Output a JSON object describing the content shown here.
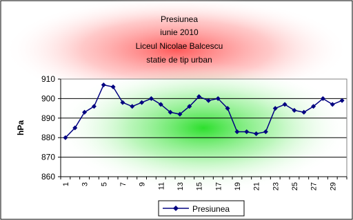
{
  "chart_data": {
    "type": "line",
    "title_lines": [
      "Presiunea",
      "iunie 2010",
      "Liceul Nicolae Balcescu",
      "statie de tip urban"
    ],
    "xlabel": "",
    "ylabel": "hPa",
    "ylim": [
      860,
      910
    ],
    "yticks": [
      860,
      870,
      880,
      890,
      900,
      910
    ],
    "x": [
      1,
      2,
      3,
      4,
      5,
      6,
      7,
      8,
      9,
      10,
      11,
      12,
      13,
      14,
      15,
      16,
      17,
      18,
      19,
      20,
      21,
      22,
      23,
      24,
      25,
      26,
      27,
      28,
      29,
      30
    ],
    "x_tick_labels": [
      "1",
      "3",
      "5",
      "7",
      "9",
      "11",
      "13",
      "15",
      "17",
      "19",
      "21",
      "23",
      "25",
      "27",
      "29"
    ],
    "series": [
      {
        "name": "Presiunea",
        "color": "#000080",
        "values": [
          880,
          885,
          893,
          896,
          907,
          906,
          898,
          896,
          898,
          900,
          897,
          893,
          892,
          896,
          901,
          899,
          900,
          895,
          883,
          883,
          882,
          883,
          895,
          897,
          894,
          893,
          896,
          900,
          897,
          899
        ]
      }
    ],
    "grid": true,
    "legend": "bottom"
  }
}
